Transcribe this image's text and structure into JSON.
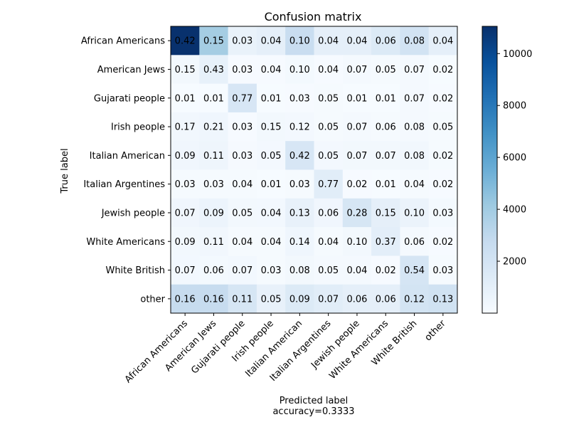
{
  "chart_data": {
    "type": "heatmap",
    "title": "Confusion matrix",
    "xlabel": "Predicted label",
    "xlabel_sub": "accuracy=0.3333",
    "ylabel": "True label",
    "row_labels": [
      "African Americans",
      "American Jews",
      "Gujarati people",
      "Irish people",
      "Italian American",
      "Italian Argentines",
      "Jewish people",
      "White Americans",
      "White British",
      "other"
    ],
    "col_labels": [
      "African Americans",
      "American Jews",
      "Gujarati people",
      "Irish people",
      "Italian American",
      "Italian Argentines",
      "Jewish people",
      "White Americans",
      "White British",
      "other"
    ],
    "values": [
      [
        0.42,
        0.15,
        0.03,
        0.04,
        0.1,
        0.04,
        0.04,
        0.06,
        0.08,
        0.04
      ],
      [
        0.15,
        0.43,
        0.03,
        0.04,
        0.1,
        0.04,
        0.07,
        0.05,
        0.07,
        0.02
      ],
      [
        0.01,
        0.01,
        0.77,
        0.01,
        0.03,
        0.05,
        0.01,
        0.01,
        0.07,
        0.02
      ],
      [
        0.17,
        0.21,
        0.03,
        0.15,
        0.12,
        0.05,
        0.07,
        0.06,
        0.08,
        0.05
      ],
      [
        0.09,
        0.11,
        0.03,
        0.05,
        0.42,
        0.05,
        0.07,
        0.07,
        0.08,
        0.02
      ],
      [
        0.03,
        0.03,
        0.04,
        0.01,
        0.03,
        0.77,
        0.02,
        0.01,
        0.04,
        0.02
      ],
      [
        0.07,
        0.09,
        0.05,
        0.04,
        0.13,
        0.06,
        0.28,
        0.15,
        0.1,
        0.03
      ],
      [
        0.09,
        0.11,
        0.04,
        0.04,
        0.14,
        0.04,
        0.1,
        0.37,
        0.06,
        0.02
      ],
      [
        0.07,
        0.06,
        0.07,
        0.03,
        0.08,
        0.05,
        0.04,
        0.02,
        0.54,
        0.03
      ],
      [
        0.16,
        0.16,
        0.11,
        0.05,
        0.09,
        0.07,
        0.06,
        0.06,
        0.12,
        0.13
      ]
    ],
    "color_values": [
      [
        11000,
        3900,
        800,
        1000,
        2600,
        1000,
        1000,
        1500,
        2100,
        1000
      ],
      [
        300,
        900,
        60,
        80,
        200,
        80,
        140,
        100,
        140,
        40
      ],
      [
        30,
        30,
        1800,
        30,
        70,
        120,
        30,
        30,
        160,
        50
      ],
      [
        350,
        420,
        60,
        300,
        240,
        100,
        140,
        120,
        160,
        100
      ],
      [
        400,
        480,
        130,
        220,
        1800,
        220,
        300,
        300,
        350,
        90
      ],
      [
        90,
        90,
        120,
        30,
        90,
        1200,
        60,
        30,
        120,
        60
      ],
      [
        400,
        600,
        300,
        250,
        850,
        400,
        1850,
        1000,
        650,
        200
      ],
      [
        270,
        330,
        120,
        120,
        420,
        120,
        300,
        1100,
        180,
        60
      ],
      [
        250,
        200,
        250,
        100,
        280,
        170,
        140,
        70,
        1900,
        100
      ],
      [
        2700,
        2700,
        1850,
        850,
        1500,
        1200,
        1000,
        1000,
        2000,
        2200
      ]
    ],
    "colorbar": {
      "range": [
        0,
        11050
      ],
      "ticks": [
        2000,
        4000,
        6000,
        8000,
        10000
      ]
    },
    "colormap": "Blues",
    "colors": {
      "low": "#f7fbff",
      "high": "#08306b",
      "text_dark": "#000000",
      "text_light": "#ffffff"
    }
  }
}
